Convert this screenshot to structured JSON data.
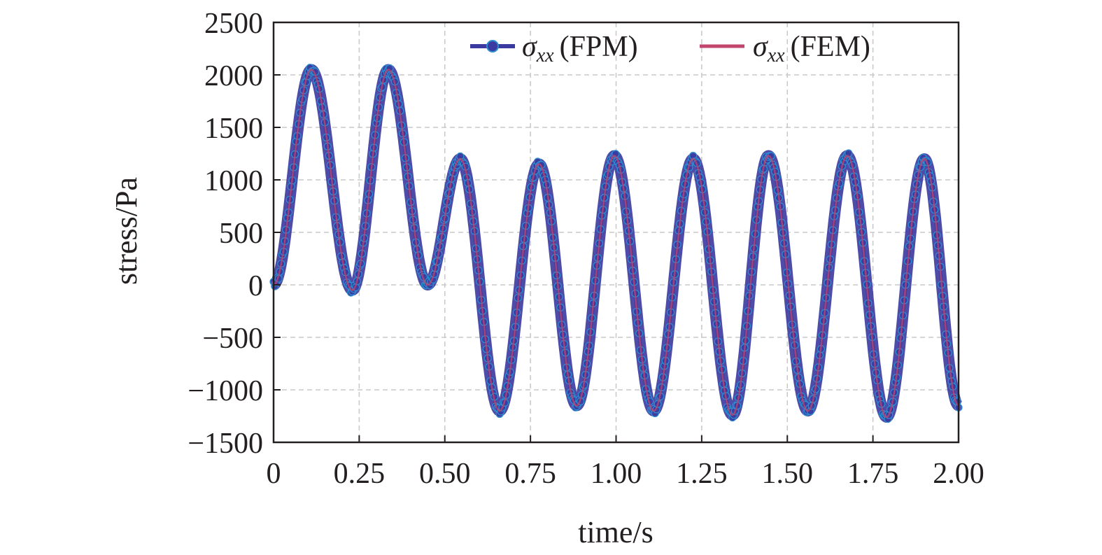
{
  "chart_data": {
    "type": "line",
    "xlabel": "time/s",
    "ylabel": "stress/Pa",
    "xlim": [
      0,
      2.0
    ],
    "ylim": [
      -1500,
      2500
    ],
    "x_ticks": [
      "0",
      "0.25",
      "0.50",
      "0.75",
      "1.00",
      "1.25",
      "1.50",
      "1.75",
      "2.00"
    ],
    "x_tick_values": [
      0,
      0.25,
      0.5,
      0.75,
      1.0,
      1.25,
      1.5,
      1.75,
      2.0
    ],
    "y_ticks": [
      "−1500",
      "−1000",
      "−500",
      "0",
      "500",
      "1000",
      "1500",
      "2000",
      "2500"
    ],
    "y_tick_values": [
      -1500,
      -1000,
      -500,
      0,
      500,
      1000,
      1500,
      2000,
      2500
    ],
    "grid": true,
    "legend_position": "top-right",
    "x": [
      0,
      0.11,
      0.23,
      0.335,
      0.45,
      0.545,
      0.66,
      0.775,
      0.885,
      0.995,
      1.11,
      1.225,
      1.34,
      1.445,
      1.56,
      1.675,
      1.79,
      1.9,
      2.0
    ],
    "series": [
      {
        "name": "FPM",
        "legend_symbol": "σ",
        "legend_subscript": "xx",
        "legend_suffix": "(FPM)",
        "color": "#3a3aa0",
        "style": "line-with-markers",
        "values": [
          0,
          2050,
          -50,
          2050,
          0,
          1200,
          -1200,
          1150,
          -1150,
          1230,
          -1200,
          1200,
          -1240,
          1230,
          -1200,
          1230,
          -1260,
          1200,
          -1150
        ]
      },
      {
        "name": "FEM",
        "legend_symbol": "σ",
        "legend_subscript": "xx",
        "legend_suffix": "(FEM)",
        "color": "#c2456e",
        "style": "line",
        "values": [
          0,
          2050,
          -50,
          2050,
          0,
          1200,
          -1200,
          1150,
          -1150,
          1230,
          -1200,
          1200,
          -1240,
          1230,
          -1200,
          1230,
          -1260,
          1200,
          -1150
        ]
      }
    ]
  }
}
